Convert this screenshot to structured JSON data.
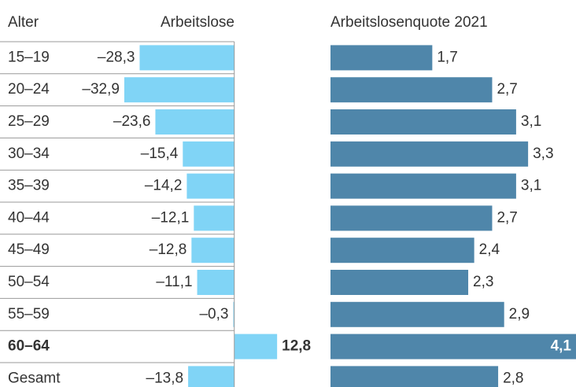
{
  "chart_data": [
    {
      "type": "bar",
      "orientation": "horizontal",
      "title": "Arbeitslose",
      "category_label": "Alter",
      "categories": [
        "15–19",
        "20–24",
        "25–29",
        "30–34",
        "35–39",
        "40–44",
        "45–49",
        "50–54",
        "55–59",
        "60–64",
        "Gesamt"
      ],
      "values": [
        -28.3,
        -32.9,
        -23.6,
        -15.4,
        -14.2,
        -12.1,
        -12.8,
        -11.1,
        -0.3,
        12.8,
        -13.8
      ],
      "value_labels": [
        "–28,3",
        "–32,9",
        "–23,6",
        "–15,4",
        "–14,2",
        "–12,1",
        "–12,8",
        "–11,1",
        "–0,3",
        "12,8",
        "–13,8"
      ],
      "color": "#80d4f6",
      "xlim": [
        -35,
        13
      ],
      "highlight_index": 9
    },
    {
      "type": "bar",
      "orientation": "horizontal",
      "title": "Arbeitslosenquote 2021",
      "values": [
        1.7,
        2.7,
        3.1,
        3.3,
        3.1,
        2.7,
        2.4,
        2.3,
        2.9,
        4.1,
        2.8
      ],
      "value_labels": [
        "1,7",
        "2,7",
        "3,1",
        "3,3",
        "3,1",
        "2,7",
        "2,4",
        "2,3",
        "2,9",
        "4,1",
        "2,8"
      ],
      "color": "#4f86aa",
      "xlim": [
        0,
        4.1
      ],
      "highlight_index": 9
    }
  ]
}
